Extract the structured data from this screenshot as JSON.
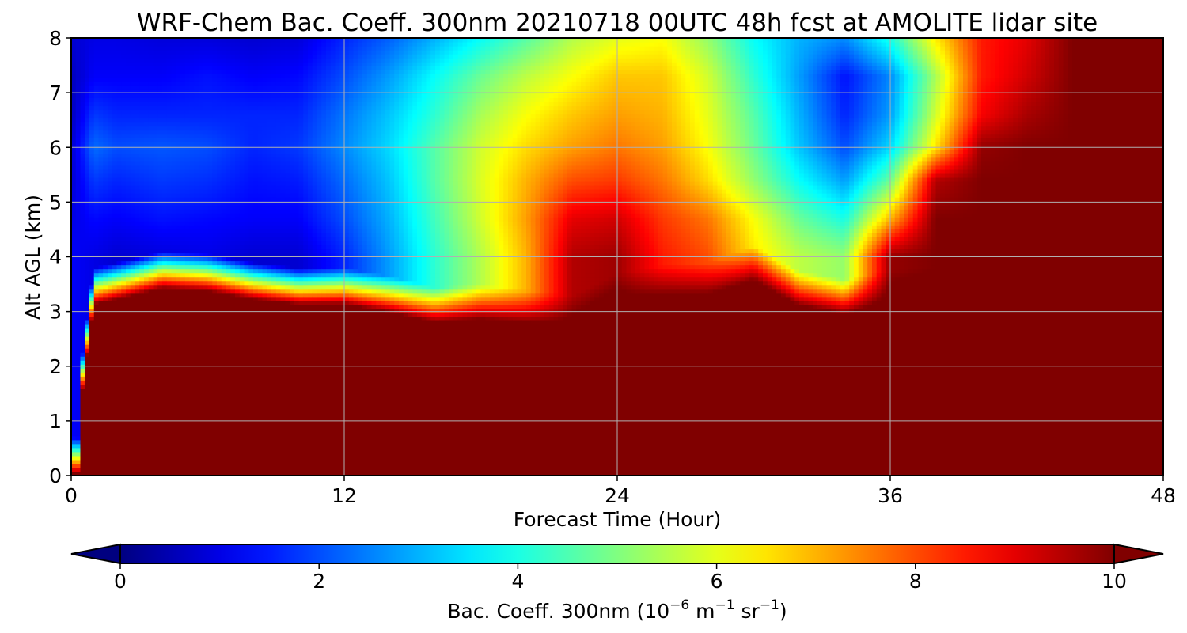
{
  "chart_data": {
    "type": "heatmap",
    "title": "WRF-Chem Bac. Coeff. 300nm  20210718 00UTC 48h fcst at AMOLITE lidar site",
    "xlabel": "Forecast Time (Hour)",
    "ylabel": "Alt AGL (km)",
    "xlim": [
      0,
      48
    ],
    "ylim": [
      0,
      8
    ],
    "xticks": [
      0,
      12,
      24,
      36,
      48
    ],
    "yticks": [
      0,
      1,
      2,
      3,
      4,
      5,
      6,
      7,
      8
    ],
    "grid": true,
    "colormap": "jet",
    "colorbar": {
      "label_main": "Bac. Coeff. 300nm  (10",
      "label_exp1": "−6",
      "label_mid": " m",
      "label_exp2": "−1",
      "label_end": " sr",
      "label_exp3": "−1",
      "label_close": ")",
      "min": 0,
      "max": 10,
      "ticks": [
        0,
        2,
        4,
        6,
        8,
        10
      ],
      "extend": "both"
    },
    "approx_field": {
      "x": [
        0,
        1,
        2,
        4,
        6,
        8,
        10,
        12,
        14,
        16,
        18,
        20,
        22,
        24,
        26,
        28,
        30,
        32,
        34,
        36,
        38,
        40,
        42,
        44,
        46,
        48
      ],
      "y": [
        0,
        1,
        2,
        2.5,
        2.8,
        3.0,
        3.2,
        3.4,
        3.6,
        3.8,
        4,
        4.5,
        5,
        5.5,
        6,
        6.5,
        7,
        7.5,
        8
      ],
      "boundary_layer_top_km": [
        0,
        3.1,
        3.2,
        3.4,
        3.35,
        3.2,
        3.1,
        3.1,
        2.95,
        2.75,
        2.8,
        2.7,
        2.6,
        3.0,
        3.15,
        3.2,
        3.5,
        3.05,
        2.9,
        3.05,
        3.1,
        3.4,
        3.6,
        4.2,
        5.5,
        8.0
      ],
      "aloft_values": [
        [
          1.2,
          1.0,
          0.8,
          0.9,
          1.0,
          0.8,
          0.8,
          1.6,
          2.8,
          4.2,
          5.5,
          7.0,
          9.5,
          9.7,
          8.5,
          8.0,
          6.5,
          5.6,
          5.2,
          9.8,
          10,
          10,
          10,
          10,
          10,
          8.2
        ],
        [
          1.0,
          1.3,
          1.2,
          1.4,
          1.3,
          1.2,
          1.2,
          2.0,
          3.0,
          4.4,
          5.8,
          7.2,
          9.0,
          9.2,
          8.2,
          7.6,
          6.2,
          4.8,
          4.0,
          7.0,
          10,
          10,
          10,
          10,
          10,
          10
        ],
        [
          0.8,
          1.8,
          1.6,
          1.8,
          1.7,
          1.4,
          1.5,
          2.3,
          3.2,
          4.6,
          5.9,
          7.0,
          8.0,
          8.2,
          7.6,
          6.6,
          5.2,
          3.8,
          2.8,
          4.8,
          9.5,
          10,
          10,
          10,
          10,
          10
        ],
        [
          0.8,
          2.3,
          2.0,
          2.1,
          2.0,
          1.6,
          1.8,
          2.6,
          3.4,
          4.6,
          5.8,
          6.6,
          7.2,
          7.6,
          7.2,
          6.2,
          4.8,
          3.2,
          2.0,
          3.4,
          6.5,
          9.8,
          10,
          10,
          10,
          10
        ],
        [
          0.6,
          1.8,
          1.6,
          1.6,
          1.6,
          1.6,
          1.6,
          2.4,
          3.2,
          4.2,
          5.4,
          6.2,
          6.8,
          7.2,
          7.0,
          6.0,
          4.6,
          3.0,
          1.6,
          2.8,
          5.8,
          8.8,
          9.6,
          10,
          10,
          10
        ],
        [
          0.6,
          1.2,
          1.2,
          1.2,
          1.4,
          1.2,
          1.3,
          2.0,
          2.8,
          3.8,
          4.8,
          5.6,
          6.2,
          6.8,
          6.8,
          5.8,
          4.2,
          2.8,
          1.4,
          2.6,
          5.4,
          8.5,
          9.2,
          10,
          10,
          10
        ],
        [
          0.8,
          1.0,
          1.0,
          0.9,
          0.9,
          0.8,
          0.9,
          1.6,
          2.2,
          3.0,
          3.8,
          4.6,
          5.5,
          6.0,
          6.2,
          5.2,
          3.8,
          3.0,
          2.6,
          4.0,
          6.4,
          8.5,
          9.0,
          10,
          10,
          10
        ]
      ]
    }
  }
}
